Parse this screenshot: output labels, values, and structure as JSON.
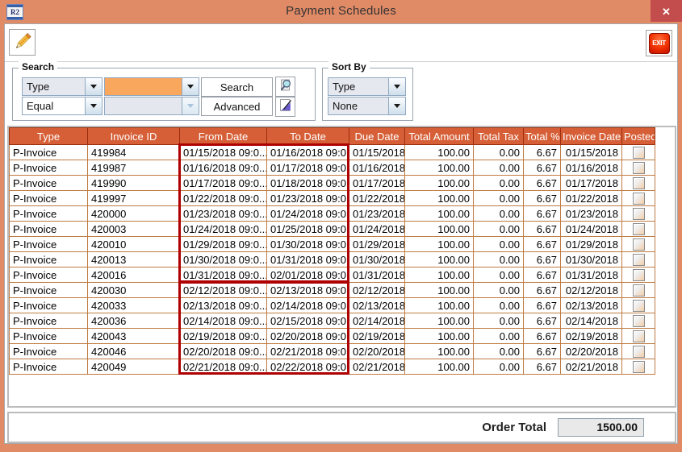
{
  "window": {
    "title": "Payment Schedules",
    "app_icon_text": "R2",
    "close_label": "✕"
  },
  "toolbar": {
    "exit_label": "EXIT"
  },
  "search": {
    "legend": "Search",
    "field_selector": "Type",
    "operator_selector": "Equal",
    "value": "",
    "value_disabled": "",
    "search_button": "Search",
    "advanced_button": "Advanced"
  },
  "sort": {
    "legend": "Sort By",
    "primary": "Type",
    "secondary": "None"
  },
  "table": {
    "columns": [
      {
        "key": "type",
        "label": "Type"
      },
      {
        "key": "invoice_id",
        "label": "Invoice ID"
      },
      {
        "key": "from_date",
        "label": "From Date"
      },
      {
        "key": "to_date",
        "label": "To Date"
      },
      {
        "key": "due_date",
        "label": "Due Date"
      },
      {
        "key": "total_amount",
        "label": "Total Amount"
      },
      {
        "key": "total_tax",
        "label": "Total Tax"
      },
      {
        "key": "total_pct",
        "label": "Total %"
      },
      {
        "key": "invoice_date",
        "label": "Invoice Date"
      },
      {
        "key": "posted",
        "label": "Posted"
      }
    ],
    "rows": [
      {
        "type": "P-Invoice",
        "invoice_id": "419984",
        "from_date": "01/15/2018 09:0...",
        "to_date": "01/16/2018 09:0...",
        "due_date": "01/15/2018",
        "total_amount": "100.00",
        "total_tax": "0.00",
        "total_pct": "6.67",
        "invoice_date": "01/15/2018",
        "posted": false
      },
      {
        "type": "P-Invoice",
        "invoice_id": "419987",
        "from_date": "01/16/2018 09:0...",
        "to_date": "01/17/2018 09:0...",
        "due_date": "01/16/2018",
        "total_amount": "100.00",
        "total_tax": "0.00",
        "total_pct": "6.67",
        "invoice_date": "01/16/2018",
        "posted": false
      },
      {
        "type": "P-Invoice",
        "invoice_id": "419990",
        "from_date": "01/17/2018 09:0...",
        "to_date": "01/18/2018 09:0...",
        "due_date": "01/17/2018",
        "total_amount": "100.00",
        "total_tax": "0.00",
        "total_pct": "6.67",
        "invoice_date": "01/17/2018",
        "posted": false
      },
      {
        "type": "P-Invoice",
        "invoice_id": "419997",
        "from_date": "01/22/2018 09:0...",
        "to_date": "01/23/2018 09:0...",
        "due_date": "01/22/2018",
        "total_amount": "100.00",
        "total_tax": "0.00",
        "total_pct": "6.67",
        "invoice_date": "01/22/2018",
        "posted": false
      },
      {
        "type": "P-Invoice",
        "invoice_id": "420000",
        "from_date": "01/23/2018 09:0...",
        "to_date": "01/24/2018 09:0...",
        "due_date": "01/23/2018",
        "total_amount": "100.00",
        "total_tax": "0.00",
        "total_pct": "6.67",
        "invoice_date": "01/23/2018",
        "posted": false
      },
      {
        "type": "P-Invoice",
        "invoice_id": "420003",
        "from_date": "01/24/2018 09:0...",
        "to_date": "01/25/2018 09:0...",
        "due_date": "01/24/2018",
        "total_amount": "100.00",
        "total_tax": "0.00",
        "total_pct": "6.67",
        "invoice_date": "01/24/2018",
        "posted": false
      },
      {
        "type": "P-Invoice",
        "invoice_id": "420010",
        "from_date": "01/29/2018 09:0...",
        "to_date": "01/30/2018 09:0...",
        "due_date": "01/29/2018",
        "total_amount": "100.00",
        "total_tax": "0.00",
        "total_pct": "6.67",
        "invoice_date": "01/29/2018",
        "posted": false
      },
      {
        "type": "P-Invoice",
        "invoice_id": "420013",
        "from_date": "01/30/2018 09:0...",
        "to_date": "01/31/2018 09:0...",
        "due_date": "01/30/2018",
        "total_amount": "100.00",
        "total_tax": "0.00",
        "total_pct": "6.67",
        "invoice_date": "01/30/2018",
        "posted": false
      },
      {
        "type": "P-Invoice",
        "invoice_id": "420016",
        "from_date": "01/31/2018 09:0...",
        "to_date": "02/01/2018 09:0...",
        "due_date": "01/31/2018",
        "total_amount": "100.00",
        "total_tax": "0.00",
        "total_pct": "6.67",
        "invoice_date": "01/31/2018",
        "posted": false
      },
      {
        "type": "P-Invoice",
        "invoice_id": "420030",
        "from_date": "02/12/2018 09:0...",
        "to_date": "02/13/2018 09:0...",
        "due_date": "02/12/2018",
        "total_amount": "100.00",
        "total_tax": "0.00",
        "total_pct": "6.67",
        "invoice_date": "02/12/2018",
        "posted": false
      },
      {
        "type": "P-Invoice",
        "invoice_id": "420033",
        "from_date": "02/13/2018 09:0...",
        "to_date": "02/14/2018 09:0...",
        "due_date": "02/13/2018",
        "total_amount": "100.00",
        "total_tax": "0.00",
        "total_pct": "6.67",
        "invoice_date": "02/13/2018",
        "posted": false
      },
      {
        "type": "P-Invoice",
        "invoice_id": "420036",
        "from_date": "02/14/2018 09:0...",
        "to_date": "02/15/2018 09:0...",
        "due_date": "02/14/2018",
        "total_amount": "100.00",
        "total_tax": "0.00",
        "total_pct": "6.67",
        "invoice_date": "02/14/2018",
        "posted": false
      },
      {
        "type": "P-Invoice",
        "invoice_id": "420043",
        "from_date": "02/19/2018 09:0...",
        "to_date": "02/20/2018 09:0...",
        "due_date": "02/19/2018",
        "total_amount": "100.00",
        "total_tax": "0.00",
        "total_pct": "6.67",
        "invoice_date": "02/19/2018",
        "posted": false
      },
      {
        "type": "P-Invoice",
        "invoice_id": "420046",
        "from_date": "02/20/2018 09:0...",
        "to_date": "02/21/2018 09:0...",
        "due_date": "02/20/2018",
        "total_amount": "100.00",
        "total_tax": "0.00",
        "total_pct": "6.67",
        "invoice_date": "02/20/2018",
        "posted": false
      },
      {
        "type": "P-Invoice",
        "invoice_id": "420049",
        "from_date": "02/21/2018 09:0...",
        "to_date": "02/22/2018 09:0...",
        "due_date": "02/21/2018",
        "total_amount": "100.00",
        "total_tax": "0.00",
        "total_pct": "6.67",
        "invoice_date": "02/21/2018",
        "posted": false
      }
    ],
    "highlights": [
      {
        "row_start": 0,
        "row_end": 8,
        "columns": [
          "from_date",
          "to_date"
        ],
        "color": "#ae0000"
      },
      {
        "row_start": 9,
        "row_end": 14,
        "columns": [
          "from_date",
          "to_date"
        ],
        "color": "#ae0000"
      }
    ]
  },
  "footer": {
    "label": "Order Total",
    "value": "1500.00"
  },
  "colors": {
    "titlebar": "#e18a66",
    "header_bg": "#d65f37",
    "cell_border": "#bf7b42",
    "highlight": "#ae0000",
    "search_value_bg": "#f8a75c",
    "close_button": "#c34c4c"
  }
}
